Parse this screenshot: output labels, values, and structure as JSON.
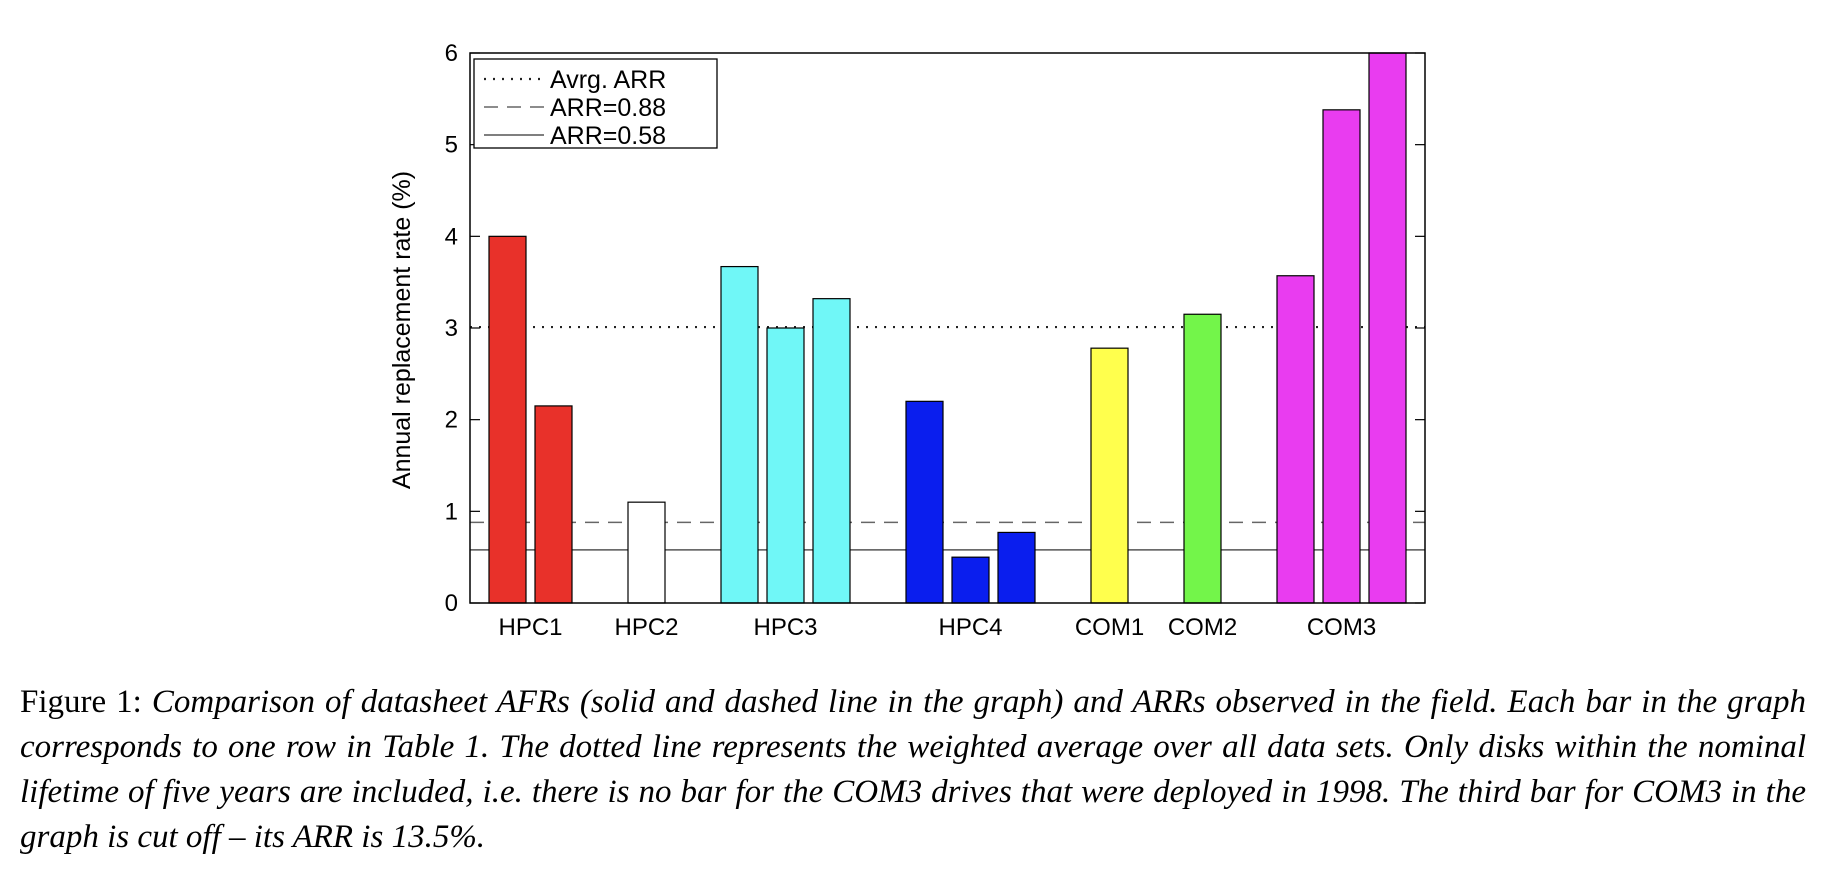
{
  "chart_data": {
    "type": "bar",
    "ylabel": "Annual replacement rate (%)",
    "ylim": [
      0,
      6
    ],
    "yticks": [
      0,
      1,
      2,
      3,
      4,
      5,
      6
    ],
    "groups": [
      {
        "label": "HPC1",
        "color": "#e8312a",
        "values": [
          4.0,
          2.15
        ]
      },
      {
        "label": "HPC2",
        "color": "#ffffff",
        "values": [
          1.1
        ]
      },
      {
        "label": "HPC3",
        "color": "#70f7f7",
        "values": [
          3.67,
          3.0,
          3.32
        ]
      },
      {
        "label": "HPC4",
        "color": "#0a1eee",
        "values": [
          2.2,
          0.5,
          0.77
        ]
      },
      {
        "label": "COM1",
        "color": "#ffff4d",
        "values": [
          2.78
        ]
      },
      {
        "label": "COM2",
        "color": "#73f54a",
        "values": [
          3.15
        ]
      },
      {
        "label": "COM3",
        "color": "#e93cf0",
        "values": [
          3.57,
          5.38,
          6.0
        ]
      }
    ],
    "reference_lines": [
      {
        "name": "Avrg. ARR",
        "value": 3.01,
        "style": "dotted"
      },
      {
        "name": "ARR=0.88",
        "value": 0.88,
        "style": "dashed"
      },
      {
        "name": "ARR=0.58",
        "value": 0.58,
        "style": "solid"
      }
    ],
    "legend_position": "top-left"
  },
  "caption": {
    "label": "Figure 1: ",
    "text": "Comparison of datasheet AFRs (solid and dashed line in the graph) and ARRs observed in the field. Each bar in the graph corresponds to one row in Table 1. The dotted line represents the weighted average over all data sets. Only disks within the nominal lifetime of five years are included, i.e. there is no bar for the COM3 drives that were deployed in 1998. The third bar for COM3 in the graph is cut off – its ARR is 13.5%."
  }
}
